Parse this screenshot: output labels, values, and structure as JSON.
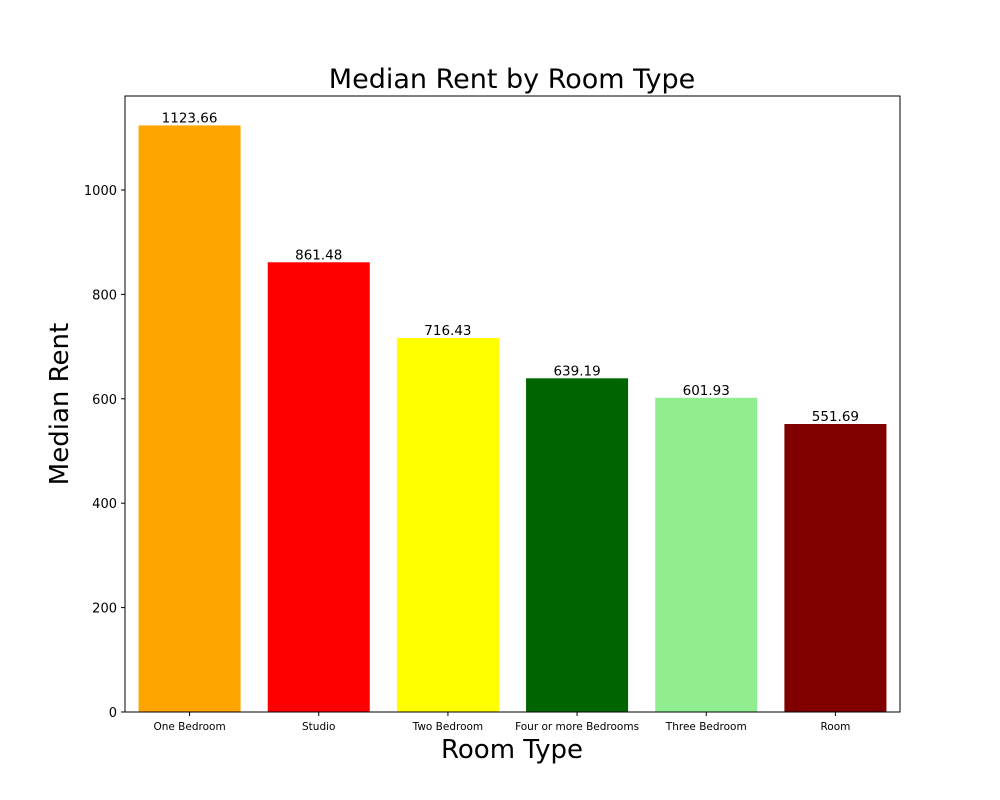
{
  "chart_data": {
    "type": "bar",
    "title": "Median Rent by Room Type",
    "xlabel": "Room Type",
    "ylabel": "Median Rent",
    "categories": [
      "One Bedroom",
      "Studio",
      "Two Bedroom",
      "Four or more Bedrooms",
      "Three Bedroom",
      "Room"
    ],
    "values": [
      1123.66,
      861.48,
      716.43,
      639.19,
      601.93,
      551.69
    ],
    "value_labels": [
      "1123.66",
      "861.48",
      "716.43",
      "639.19",
      "601.93",
      "551.69"
    ],
    "colors": [
      "#ffa500",
      "#ff0000",
      "#ffff00",
      "#006400",
      "#90ee90",
      "#800000"
    ],
    "ylim": [
      0,
      1180
    ],
    "yticks": [
      0,
      200,
      400,
      600,
      800,
      1000
    ],
    "grid": false,
    "legend": "none"
  }
}
